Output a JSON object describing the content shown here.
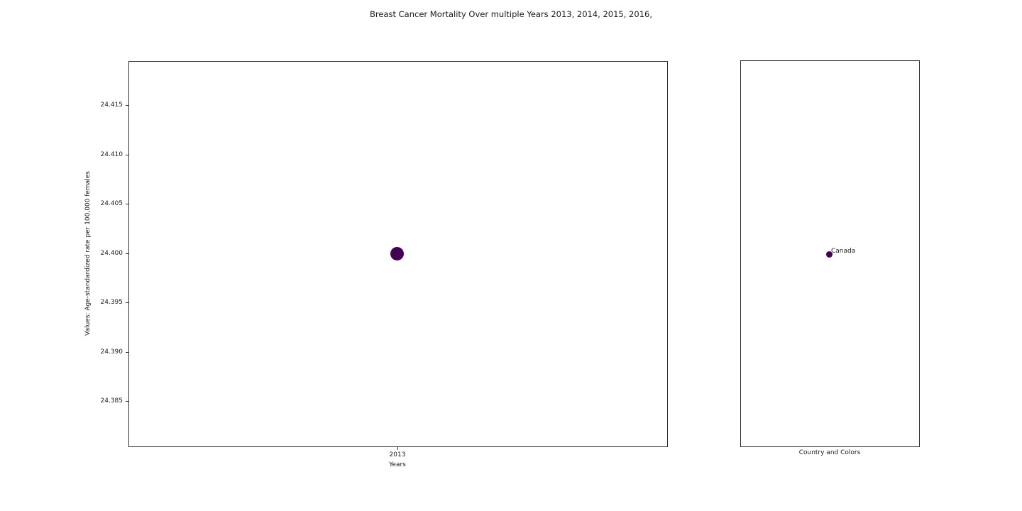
{
  "title": "Breast Cancer Mortality Over multiple Years 2013, 2014, 2015, 2016,",
  "chart_data": {
    "type": "scatter",
    "title": "Breast Cancer Mortality Over multiple Years 2013, 2014, 2015, 2016,",
    "grid": false,
    "panels": [
      {
        "name": "mortality-scatter",
        "xlabel": "Years",
        "ylabel": "Values: Age-standardized rate per 100,000 females",
        "xticks": [
          "2013"
        ],
        "yticks": [
          "24.415",
          "24.410",
          "24.405",
          "24.400",
          "24.395",
          "24.390",
          "24.385"
        ],
        "xlim": [
          2012.5,
          2013.5
        ],
        "ylim": [
          24.3805,
          24.4195
        ],
        "series": [
          {
            "name": "Canada",
            "x": [
              2013
            ],
            "y": [
              24.4
            ],
            "color": "#440154"
          }
        ]
      },
      {
        "name": "legend-panel",
        "xlabel": "Country and Colors",
        "xticks": [],
        "yticks": [],
        "annotations": [
          {
            "text": "Canada",
            "y": 24.4,
            "color": "#440154"
          }
        ]
      }
    ]
  }
}
